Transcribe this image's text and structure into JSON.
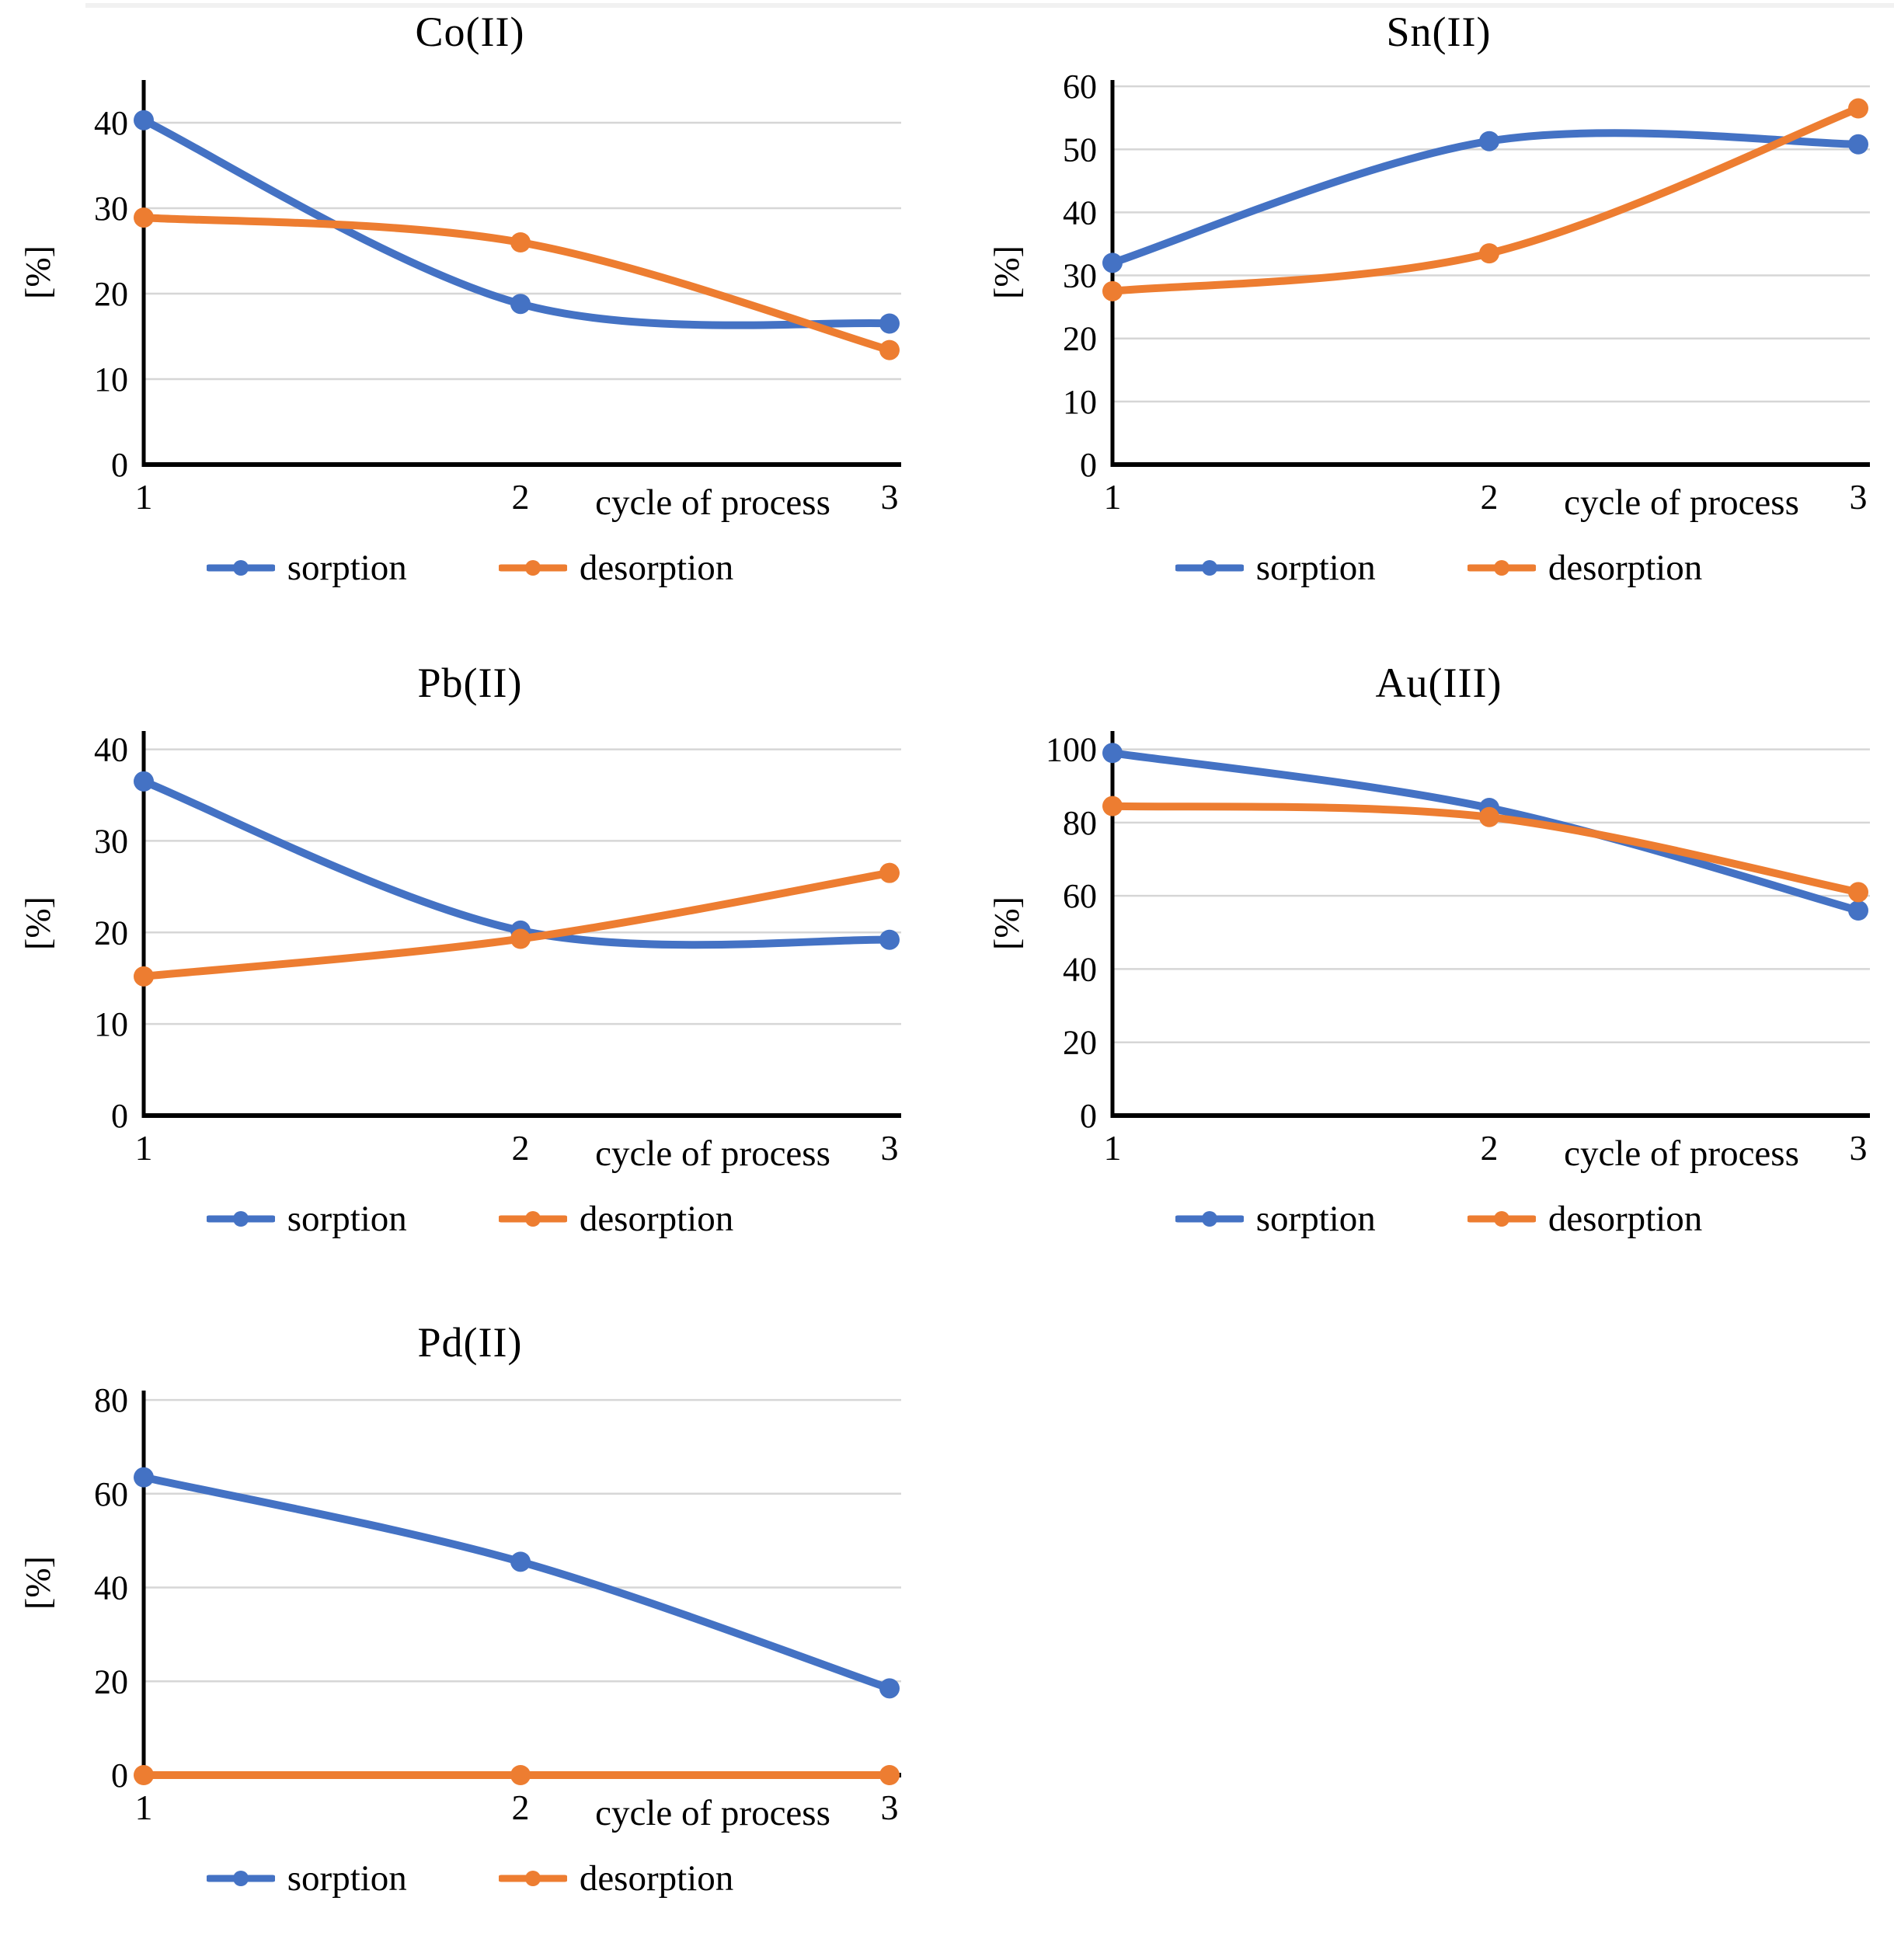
{
  "figure": {
    "description_text": "",
    "shared_xlabel": "cycle of process",
    "shared_ylabel": "[%]"
  },
  "colors": {
    "sorption": "#4472C4",
    "desorption": "#ED7D31",
    "gridline": "#D6D6D6",
    "axis": "#000000",
    "text": "#000000",
    "background": "#ffffff"
  },
  "chart_data": [
    {
      "type": "line",
      "title": "Co(II)",
      "x": [
        1,
        2,
        3
      ],
      "xlabel": "cycle of process",
      "ylabel": "[%]",
      "ylim": [
        0,
        45
      ],
      "yticks": [
        0,
        10,
        20,
        30,
        40
      ],
      "grid": true,
      "line_style": "smooth",
      "legend_position": "bottom",
      "series": [
        {
          "name": "sorption",
          "color": "#4472C4",
          "values": [
            40.3,
            18.8,
            16.5
          ]
        },
        {
          "name": "desorption",
          "color": "#ED7D31",
          "values": [
            28.9,
            26.0,
            13.4
          ]
        }
      ]
    },
    {
      "type": "line",
      "title": "Sn(II)",
      "x": [
        1,
        2,
        3
      ],
      "xlabel": "cycle of process",
      "ylabel": "[%]",
      "ylim": [
        0,
        61
      ],
      "yticks": [
        0,
        10,
        20,
        30,
        40,
        50,
        60
      ],
      "grid": true,
      "line_style": "smooth",
      "legend_position": "bottom",
      "series": [
        {
          "name": "sorption",
          "color": "#4472C4",
          "values": [
            32.0,
            51.3,
            50.8
          ]
        },
        {
          "name": "desorption",
          "color": "#ED7D31",
          "values": [
            27.5,
            33.5,
            56.5
          ]
        }
      ]
    },
    {
      "type": "line",
      "title": "Pb(II)",
      "x": [
        1,
        2,
        3
      ],
      "xlabel": "cycle of process",
      "ylabel": "[%]",
      "ylim": [
        0,
        42
      ],
      "yticks": [
        0,
        10,
        20,
        30,
        40
      ],
      "grid": true,
      "line_style": "smooth",
      "legend_position": "bottom",
      "series": [
        {
          "name": "sorption",
          "color": "#4472C4",
          "values": [
            36.5,
            20.2,
            19.2
          ]
        },
        {
          "name": "desorption",
          "color": "#ED7D31",
          "values": [
            15.2,
            19.3,
            26.5
          ]
        }
      ]
    },
    {
      "type": "line",
      "title": "Au(III)",
      "x": [
        1,
        2,
        3
      ],
      "xlabel": "cycle of process",
      "ylabel": "[%]",
      "ylim": [
        0,
        105
      ],
      "yticks": [
        0,
        20,
        40,
        60,
        80,
        100
      ],
      "grid": true,
      "line_style": "smooth",
      "legend_position": "bottom",
      "series": [
        {
          "name": "sorption",
          "color": "#4472C4",
          "values": [
            99.0,
            84.0,
            56.0
          ]
        },
        {
          "name": "desorption",
          "color": "#ED7D31",
          "values": [
            84.5,
            81.5,
            61.0
          ]
        }
      ]
    },
    {
      "type": "line",
      "title": "Pd(II)",
      "x": [
        1,
        2,
        3
      ],
      "xlabel": "cycle of process",
      "ylabel": "[%]",
      "ylim": [
        0,
        82
      ],
      "yticks": [
        0,
        20,
        40,
        60,
        80
      ],
      "grid": true,
      "line_style": "smooth",
      "legend_position": "bottom",
      "series": [
        {
          "name": "sorption",
          "color": "#4472C4",
          "values": [
            63.5,
            45.5,
            18.5
          ]
        },
        {
          "name": "desorption",
          "color": "#ED7D31",
          "values": [
            0,
            0,
            0
          ]
        }
      ]
    }
  ]
}
